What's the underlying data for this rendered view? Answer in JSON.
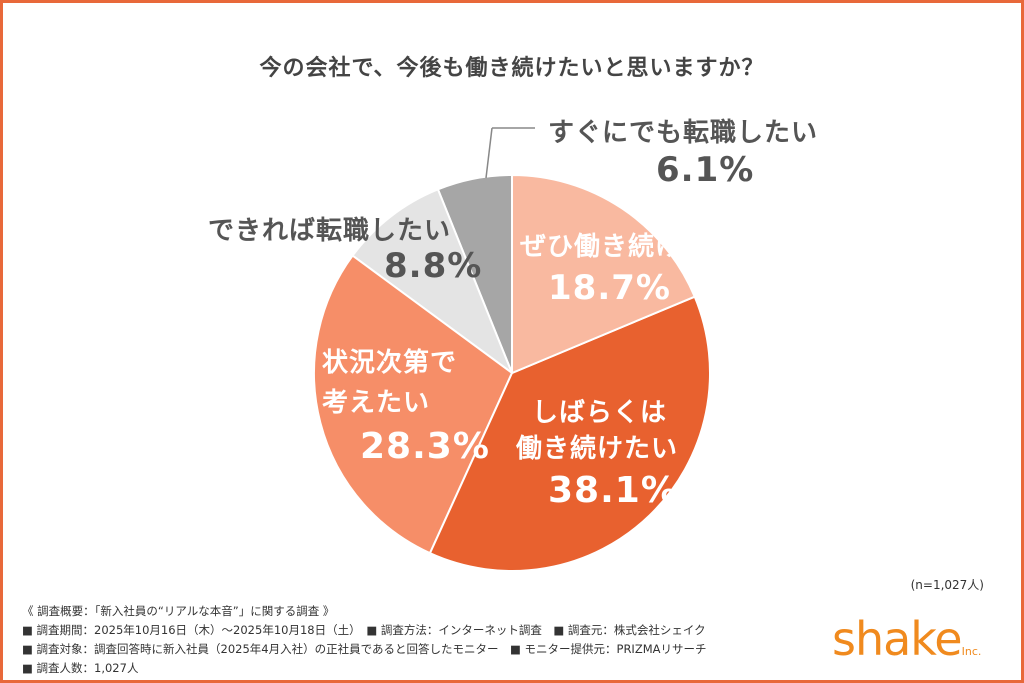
{
  "chart_data": {
    "type": "pie",
    "title": "今の会社で、今後も働き続けたいと思いますか？",
    "slices": [
      {
        "label": "ぜひ働き続けたい",
        "value": 18.7,
        "display": "18.7%",
        "color": "#f9b9a0"
      },
      {
        "label": "しばらくは働き続けたい",
        "value": 38.1,
        "display": "38.1%",
        "color": "#e8612f"
      },
      {
        "label": "状況次第で考えたい",
        "value": 28.3,
        "display": "28.3%",
        "color": "#f68e68"
      },
      {
        "label": "できれば転職したい",
        "value": 8.8,
        "display": "8.8%",
        "color": "#e4e4e4"
      },
      {
        "label": "すぐにでも転職したい",
        "value": 6.1,
        "display": "6.1%",
        "color": "#a6a6a6"
      }
    ]
  },
  "labels": {
    "s0": "ぜひ働き続けたい",
    "s1a": "しばらくは",
    "s1b": "働き続けたい",
    "s2a": "状況次第で",
    "s2b": "考えたい",
    "s3": "できれば転職したい",
    "s4": "すぐにでも転職したい"
  },
  "sample": "(n=1,027人)",
  "notes": [
    "《 調査概要：「新入社員の“リアルな本音”」に関する調査 》",
    "■ 調査期間：2025年10月16日（木）～2025年10月18日（土）　■ 調査方法：インターネット調査　■ 調査元：株式会社シェイク",
    "■ 調査対象：調査回答時に新入社員（2025年4月入社）の正社員であると回答したモニター　■ モニター提供元：PRIZMAリサーチ",
    "■ 調査人数：1,027人"
  ],
  "logo": {
    "text": "shake",
    "suffix": "Inc."
  }
}
